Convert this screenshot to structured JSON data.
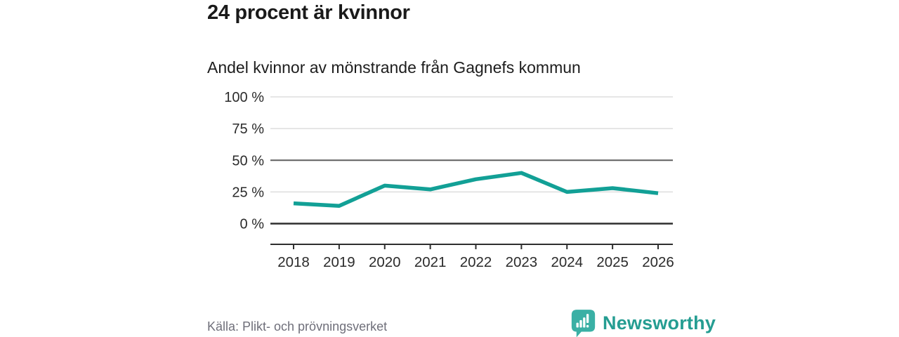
{
  "header": {
    "title": "24 procent är kvinnor",
    "subtitle": "Andel kvinnor av mönstrande från Gagnefs kommun"
  },
  "chart_data": {
    "type": "line",
    "title": "Andel kvinnor av mönstrande från Gagnefs kommun",
    "x": [
      2018,
      2019,
      2020,
      2021,
      2022,
      2023,
      2024,
      2025,
      2026
    ],
    "x_tick_labels": [
      "2018",
      "2019",
      "2020",
      "2021",
      "2022",
      "2023",
      "2024",
      "2025",
      "2026"
    ],
    "series": [
      {
        "name": "Andel kvinnor",
        "values": [
          16,
          14,
          30,
          27,
          35,
          40,
          25,
          28,
          24
        ]
      }
    ],
    "unit": "%",
    "ylim": [
      0,
      100
    ],
    "y_tick_values": [
      0,
      25,
      50,
      75,
      100
    ],
    "y_tick_labels": [
      "0 %",
      "25 %",
      "50 %",
      "75 %",
      "100 %"
    ],
    "grid": "horizontal",
    "legend": "none"
  },
  "colors": {
    "line": "#12a096",
    "grid_light": "#dddddd",
    "grid_mid": "#5f5f5f",
    "axis_dark": "#2e2e2e",
    "tick_text": "#2b2b2b",
    "source_text": "#6f6f7a",
    "brand_icon": "#3ab0a5",
    "brand_text": "#259d92"
  },
  "footer": {
    "source": "Källa: Plikt- och prövningsverket",
    "brand": "Newsworthy"
  }
}
